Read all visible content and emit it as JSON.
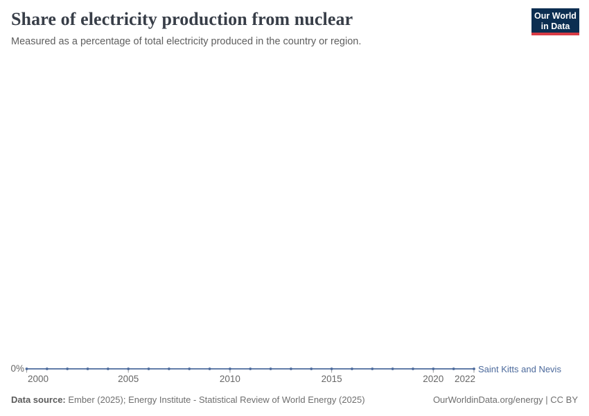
{
  "header": {
    "logo_line1": "Our World",
    "logo_line2": "in Data",
    "logo_bg_color": "#0c2e51",
    "logo_accent_color": "#d93b45"
  },
  "chart_data": {
    "type": "line",
    "title": "Share of electricity production from nuclear",
    "subtitle": "Measured as a percentage of total electricity produced in the country or region.",
    "xlabel": "",
    "ylabel": "",
    "x": [
      2000,
      2001,
      2002,
      2003,
      2004,
      2005,
      2006,
      2007,
      2008,
      2009,
      2010,
      2011,
      2012,
      2013,
      2014,
      2015,
      2016,
      2017,
      2018,
      2019,
      2020,
      2021,
      2022
    ],
    "series": [
      {
        "name": "Saint Kitts and Nevis",
        "color": "#4c6a9c",
        "values": [
          0,
          0,
          0,
          0,
          0,
          0,
          0,
          0,
          0,
          0,
          0,
          0,
          0,
          0,
          0,
          0,
          0,
          0,
          0,
          0,
          0,
          0,
          0
        ]
      }
    ],
    "x_ticks": [
      2000,
      2005,
      2010,
      2015,
      2020,
      2022
    ],
    "y_tick_labels": [
      "0%"
    ],
    "ylim": [
      0,
      1
    ],
    "grid": false,
    "legend_position": "end-of-line"
  },
  "footer": {
    "source_label": "Data source:",
    "source_value": " Ember (2025); Energy Institute - Statistical Review of World Energy (2025)",
    "credit": "OurWorldinData.org/energy | CC BY"
  }
}
